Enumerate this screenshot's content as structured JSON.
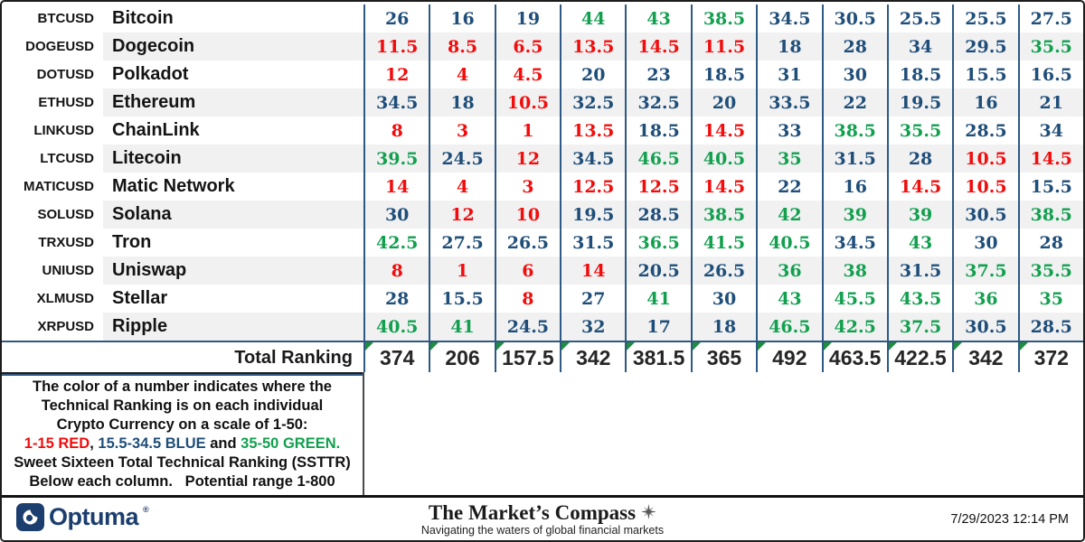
{
  "colors": {
    "red": "#F20D0D",
    "blue": "#1F4E79",
    "green": "#12A04F",
    "grid": "#2E5984",
    "total_text": "#262626",
    "brand_navy": "#1C3E6E",
    "band_gray": "#F1F1F2",
    "triangle_green": "#1E8E3E"
  },
  "color_rule": {
    "red_max": 15,
    "blue_max": 34.5,
    "green_max": 50
  },
  "table": {
    "rows": [
      {
        "ticker": "BTCUSD",
        "name": "Bitcoin",
        "values": [
          26,
          16,
          19,
          44,
          43,
          38.5,
          34.5,
          30.5,
          25.5,
          25.5,
          27.5
        ]
      },
      {
        "ticker": "DOGEUSD",
        "name": "Dogecoin",
        "values": [
          11.5,
          8.5,
          6.5,
          13.5,
          14.5,
          11.5,
          18,
          28,
          34,
          29.5,
          35.5
        ]
      },
      {
        "ticker": "DOTUSD",
        "name": "Polkadot",
        "values": [
          12,
          4,
          4.5,
          20,
          23,
          18.5,
          31,
          30,
          18.5,
          15.5,
          16.5
        ]
      },
      {
        "ticker": "ETHUSD",
        "name": "Ethereum",
        "values": [
          34.5,
          18,
          10.5,
          32.5,
          32.5,
          20,
          33.5,
          22,
          19.5,
          16,
          21
        ]
      },
      {
        "ticker": "LINKUSD",
        "name": "ChainLink",
        "values": [
          8,
          3,
          1,
          13.5,
          18.5,
          14.5,
          33,
          38.5,
          35.5,
          28.5,
          34
        ]
      },
      {
        "ticker": "LTCUSD",
        "name": "Litecoin",
        "values": [
          39.5,
          24.5,
          12,
          34.5,
          46.5,
          40.5,
          35,
          31.5,
          28,
          10.5,
          14.5
        ]
      },
      {
        "ticker": "MATICUSD",
        "name": "Matic Network",
        "values": [
          14,
          4,
          3,
          12.5,
          12.5,
          14.5,
          22,
          16,
          14.5,
          10.5,
          15.5
        ]
      },
      {
        "ticker": "SOLUSD",
        "name": "Solana",
        "values": [
          30,
          12,
          10,
          19.5,
          28.5,
          38.5,
          42,
          39,
          39,
          30.5,
          38.5
        ]
      },
      {
        "ticker": "TRXUSD",
        "name": "Tron",
        "values": [
          42.5,
          27.5,
          26.5,
          31.5,
          36.5,
          41.5,
          40.5,
          34.5,
          43,
          30,
          28
        ]
      },
      {
        "ticker": "UNIUSD",
        "name": "Uniswap",
        "values": [
          8,
          1,
          6,
          14,
          20.5,
          26.5,
          36,
          38,
          31.5,
          37.5,
          35.5
        ]
      },
      {
        "ticker": "XLMUSD",
        "name": "Stellar",
        "values": [
          28,
          15.5,
          8,
          27,
          41,
          30,
          43,
          45.5,
          43.5,
          36,
          35
        ]
      },
      {
        "ticker": "XRPUSD",
        "name": "Ripple",
        "values": [
          40.5,
          41,
          24.5,
          32,
          17,
          18,
          46.5,
          42.5,
          37.5,
          30.5,
          28.5
        ]
      }
    ],
    "total_label": "Total Ranking",
    "totals": [
      374,
      206,
      157.5,
      342,
      381.5,
      365,
      492,
      463.5,
      422.5,
      342,
      372
    ]
  },
  "legend": {
    "lines": [
      [
        {
          "t": "The color of a number indicates where the"
        }
      ],
      [
        {
          "t": "Technical Ranking is on each individual"
        }
      ],
      [
        {
          "t": "Crypto Currency on a scale of 1-50:"
        }
      ],
      [
        {
          "t": "1-15 RED",
          "c": "red"
        },
        {
          "t": ", "
        },
        {
          "t": "15.5-34.5 BLUE",
          "c": "blue"
        },
        {
          "t": " and "
        },
        {
          "t": "35-50 GREEN.",
          "c": "green"
        }
      ],
      [
        {
          "t": "Sweet Sixteen Total Technical Ranking (SSTTR)"
        }
      ],
      [
        {
          "t": "Below each column.   Potential range 1-800"
        }
      ]
    ]
  },
  "footer": {
    "brand": "Optuma",
    "registered": "®",
    "title": "The Market’s Compass",
    "tagline": "Navigating the waters of global financial markets",
    "timestamp": "7/29/2023 12:14 PM"
  }
}
